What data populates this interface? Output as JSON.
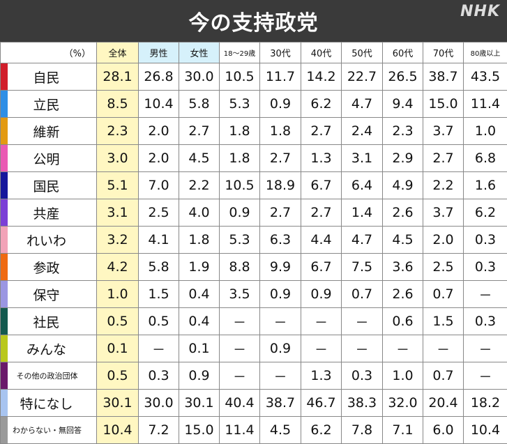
{
  "title": "今の支持政党",
  "logo": "NHK",
  "chart_data": {
    "type": "table",
    "unit_label": "（%）",
    "columns": [
      "全体",
      "男性",
      "女性",
      "18～29歳",
      "30代",
      "40代",
      "50代",
      "60代",
      "70代",
      "80歳以上"
    ],
    "rows": [
      {
        "party": "自民",
        "color": "#d11e2b",
        "values": [
          "28.1",
          "26.8",
          "30.0",
          "10.5",
          "11.7",
          "14.2",
          "22.7",
          "26.5",
          "38.7",
          "43.5"
        ]
      },
      {
        "party": "立民",
        "color": "#2f8fe6",
        "values": [
          "8.5",
          "10.4",
          "5.8",
          "5.3",
          "0.9",
          "6.2",
          "4.7",
          "9.4",
          "15.0",
          "11.4"
        ]
      },
      {
        "party": "維新",
        "color": "#e39a12",
        "values": [
          "2.3",
          "2.0",
          "2.7",
          "1.8",
          "1.8",
          "2.7",
          "2.4",
          "2.3",
          "3.7",
          "1.0"
        ]
      },
      {
        "party": "公明",
        "color": "#ea5ab4",
        "values": [
          "3.0",
          "2.0",
          "4.5",
          "1.8",
          "2.7",
          "1.3",
          "3.1",
          "2.9",
          "2.7",
          "6.8"
        ]
      },
      {
        "party": "国民",
        "color": "#16179c",
        "values": [
          "5.1",
          "7.0",
          "2.2",
          "10.5",
          "18.9",
          "6.7",
          "6.4",
          "4.9",
          "2.2",
          "1.6"
        ]
      },
      {
        "party": "共産",
        "color": "#7b3fd6",
        "values": [
          "3.1",
          "2.5",
          "4.0",
          "0.9",
          "2.7",
          "2.7",
          "1.4",
          "2.6",
          "3.7",
          "6.2"
        ]
      },
      {
        "party": "れいわ",
        "color": "#f2a3b8",
        "values": [
          "3.2",
          "4.1",
          "1.8",
          "5.3",
          "6.3",
          "4.4",
          "4.7",
          "4.5",
          "2.0",
          "0.3"
        ]
      },
      {
        "party": "参政",
        "color": "#ef6a12",
        "values": [
          "4.2",
          "5.8",
          "1.9",
          "8.8",
          "9.9",
          "6.7",
          "7.5",
          "3.6",
          "2.5",
          "0.3"
        ]
      },
      {
        "party": "保守",
        "color": "#9b96e2",
        "values": [
          "1.0",
          "1.5",
          "0.4",
          "3.5",
          "0.9",
          "0.9",
          "0.7",
          "2.6",
          "0.7",
          "－"
        ]
      },
      {
        "party": "社民",
        "color": "#145a4f",
        "values": [
          "0.5",
          "0.5",
          "0.4",
          "－",
          "－",
          "－",
          "－",
          "0.6",
          "1.5",
          "0.3"
        ]
      },
      {
        "party": "みんな",
        "color": "#b9c81c",
        "values": [
          "0.1",
          "－",
          "0.1",
          "－",
          "0.9",
          "－",
          "－",
          "－",
          "－",
          "－"
        ]
      },
      {
        "party": "その他の政治団体",
        "color": "#6a1a6a",
        "values": [
          "0.5",
          "0.3",
          "0.9",
          "－",
          "－",
          "1.3",
          "0.3",
          "1.0",
          "0.7",
          "－"
        ]
      },
      {
        "party": "特になし",
        "color": "#a8c4f0",
        "values": [
          "30.1",
          "30.0",
          "30.1",
          "40.4",
          "38.7",
          "46.7",
          "38.3",
          "32.0",
          "20.4",
          "18.2"
        ]
      },
      {
        "party": "わからない・無回答",
        "color": "#9a9a9a",
        "values": [
          "10.4",
          "7.2",
          "15.0",
          "11.4",
          "4.5",
          "6.2",
          "7.8",
          "7.1",
          "6.0",
          "10.4"
        ]
      }
    ]
  }
}
